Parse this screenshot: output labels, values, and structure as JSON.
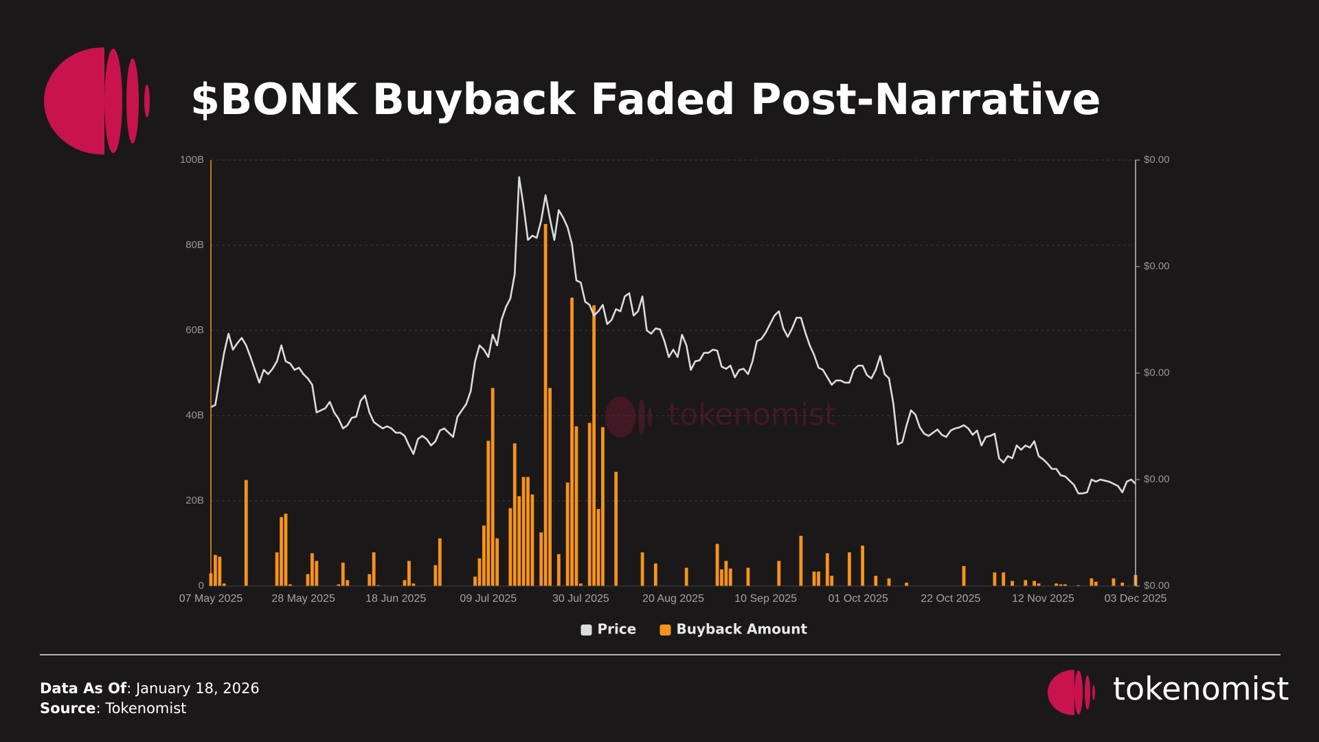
{
  "chart_data": {
    "type": "combo",
    "title": "$BONK Buyback Faded Post-Narrative",
    "categories": [
      "07 May 2025",
      null,
      null,
      null,
      null,
      null,
      null,
      null,
      null,
      null,
      null,
      null,
      null,
      null,
      null,
      null,
      null,
      null,
      null,
      null,
      null,
      "28 May 2025",
      null,
      null,
      null,
      null,
      null,
      null,
      null,
      null,
      null,
      null,
      null,
      null,
      null,
      null,
      null,
      null,
      null,
      null,
      null,
      null,
      "18 Jun 2025",
      null,
      null,
      null,
      null,
      null,
      null,
      null,
      null,
      null,
      null,
      null,
      null,
      null,
      null,
      null,
      null,
      null,
      null,
      null,
      null,
      "09 Jul 2025",
      null,
      null,
      null,
      null,
      null,
      null,
      null,
      null,
      null,
      null,
      null,
      null,
      null,
      null,
      null,
      null,
      null,
      null,
      null,
      null,
      "30 Jul 2025",
      null,
      null,
      null,
      null,
      null,
      null,
      null,
      null,
      null,
      null,
      null,
      null,
      null,
      null,
      null,
      null,
      null,
      null,
      null,
      null,
      "20 Aug 2025",
      null,
      null,
      null,
      null,
      null,
      null,
      null,
      null,
      null,
      null,
      null,
      null,
      null,
      null,
      null,
      null,
      null,
      null,
      null,
      null,
      "10 Sep 2025",
      null,
      null,
      null,
      null,
      null,
      null,
      null,
      null,
      null,
      null,
      null,
      null,
      null,
      null,
      null,
      null,
      null,
      null,
      null,
      null,
      "01 Oct 2025",
      null,
      null,
      null,
      null,
      null,
      null,
      null,
      null,
      null,
      null,
      null,
      null,
      null,
      null,
      null,
      null,
      null,
      null,
      null,
      null,
      "22 Oct 2025",
      null,
      null,
      null,
      null,
      null,
      null,
      null,
      null,
      null,
      null,
      null,
      null,
      null,
      null,
      null,
      null,
      null,
      null,
      null,
      null,
      "12 Nov 2025",
      null,
      null,
      null,
      null,
      null,
      null,
      null,
      null,
      null,
      null,
      null,
      null,
      null,
      null,
      null,
      null,
      null,
      null,
      null,
      null,
      "03 Dec 2025"
    ],
    "series": [
      {
        "name": "Price",
        "type": "line",
        "axis": "y2",
        "color": "#dcdcdc",
        "values": [
          1.68e-05,
          1.7e-05,
          1.95e-05,
          2.19e-05,
          2.37e-05,
          2.22e-05,
          2.28e-05,
          2.33e-05,
          2.26e-05,
          2.15e-05,
          2.03e-05,
          1.91e-05,
          2.03e-05,
          1.99e-05,
          2.04e-05,
          2.11e-05,
          2.26e-05,
          2.11e-05,
          2.09e-05,
          2.03e-05,
          2.05e-05,
          1.99e-05,
          1.95e-05,
          1.89e-05,
          1.63e-05,
          1.65e-05,
          1.67e-05,
          1.73e-05,
          1.63e-05,
          1.57e-05,
          1.48e-05,
          1.51e-05,
          1.58e-05,
          1.59e-05,
          1.74e-05,
          1.79e-05,
          1.63e-05,
          1.54e-05,
          1.51e-05,
          1.48e-05,
          1.5e-05,
          1.48e-05,
          1.44e-05,
          1.44e-05,
          1.41e-05,
          1.32e-05,
          1.24e-05,
          1.38e-05,
          1.41e-05,
          1.38e-05,
          1.32e-05,
          1.36e-05,
          1.46e-05,
          1.48e-05,
          1.44e-05,
          1.4e-05,
          1.59e-05,
          1.65e-05,
          1.71e-05,
          1.83e-05,
          2.11e-05,
          2.26e-05,
          2.22e-05,
          2.15e-05,
          2.36e-05,
          2.26e-05,
          2.5e-05,
          2.62e-05,
          2.7e-05,
          2.93e-05,
          3.84e-05,
          3.57e-05,
          3.25e-05,
          3.29e-05,
          3.27e-05,
          3.43e-05,
          3.67e-05,
          3.45e-05,
          3.25e-05,
          3.53e-05,
          3.46e-05,
          3.37e-05,
          3.21e-05,
          2.87e-05,
          2.85e-05,
          2.67e-05,
          2.64e-05,
          2.54e-05,
          2.58e-05,
          2.64e-05,
          2.46e-05,
          2.5e-05,
          2.6e-05,
          2.58e-05,
          2.72e-05,
          2.75e-05,
          2.54e-05,
          2.58e-05,
          2.72e-05,
          2.4e-05,
          2.37e-05,
          2.42e-05,
          2.41e-05,
          2.3e-05,
          2.15e-05,
          2.22e-05,
          2.15e-05,
          2.36e-05,
          2.26e-05,
          2.03e-05,
          2.11e-05,
          2.12e-05,
          2.19e-05,
          2.19e-05,
          2.22e-05,
          2.21e-05,
          2.06e-05,
          2.04e-05,
          2.07e-05,
          1.96e-05,
          2.03e-05,
          2.04e-05,
          1.99e-05,
          2.11e-05,
          2.3e-05,
          2.32e-05,
          2.38e-05,
          2.46e-05,
          2.54e-05,
          2.58e-05,
          2.42e-05,
          2.34e-05,
          2.42e-05,
          2.52e-05,
          2.52e-05,
          2.38e-05,
          2.26e-05,
          2.17e-05,
          2.05e-05,
          2.03e-05,
          1.96e-05,
          1.89e-05,
          1.93e-05,
          1.93e-05,
          1.91e-05,
          1.91e-05,
          2.03e-05,
          2.07e-05,
          2.07e-05,
          1.98e-05,
          1.95e-05,
          2.03e-05,
          2.16e-05,
          1.99e-05,
          1.95e-05,
          1.71e-05,
          1.33e-05,
          1.35e-05,
          1.51e-05,
          1.65e-05,
          1.61e-05,
          1.49e-05,
          1.43e-05,
          1.41e-05,
          1.44e-05,
          1.47e-05,
          1.42e-05,
          1.4e-05,
          1.46e-05,
          1.48e-05,
          1.49e-05,
          1.51e-05,
          1.48e-05,
          1.42e-05,
          1.46e-05,
          1.32e-05,
          1.4e-05,
          1.41e-05,
          1.43e-05,
          1.2e-05,
          1.16e-05,
          1.22e-05,
          1.2e-05,
          1.32e-05,
          1.28e-05,
          1.32e-05,
          1.3e-05,
          1.36e-05,
          1.22e-05,
          1.19e-05,
          1.15e-05,
          1.1e-05,
          1.1e-05,
          1.04e-05,
          1.03e-05,
          9.9e-06,
          9.5e-06,
          8.7e-06,
          8.7e-06,
          8.8e-06,
          1e-05,
          9.8e-06,
          1e-05,
          9.9e-06,
          9.8e-06,
          9.6e-06,
          9.4e-06,
          8.8e-06,
          9.8e-06,
          1e-05,
          9.6e-06
        ]
      },
      {
        "name": "Buyback Amount",
        "type": "bar",
        "axis": "y",
        "color": "#f7931a",
        "values": [
          3.0,
          7.3,
          6.9,
          0.6,
          0,
          0,
          0,
          0,
          24.9,
          0,
          0,
          0,
          0,
          0,
          0,
          7.9,
          16.2,
          17.0,
          0.4,
          0,
          0,
          0,
          2.8,
          7.7,
          5.9,
          0,
          0,
          0,
          0,
          0.4,
          5.5,
          1.4,
          0,
          0,
          0,
          0,
          2.8,
          7.9,
          0.2,
          0,
          0,
          0,
          0,
          0,
          1.4,
          5.9,
          0.6,
          0,
          0,
          0,
          0,
          4.9,
          11.2,
          0,
          0,
          0,
          0,
          0,
          0,
          0,
          2.2,
          6.5,
          14.2,
          34.1,
          46.5,
          11.2,
          0,
          0,
          18.3,
          33.5,
          21.1,
          25.6,
          25.6,
          21.5,
          0,
          12.6,
          85.0,
          46.5,
          0,
          7.5,
          0,
          24.3,
          67.7,
          37.5,
          0.6,
          0,
          38.3,
          65.9,
          18.1,
          37.3,
          0,
          0,
          26.8,
          0,
          0,
          0,
          0,
          0,
          7.9,
          0,
          0,
          5.3,
          0,
          0,
          0,
          0,
          0,
          0,
          4.3,
          0,
          0,
          0,
          0,
          0,
          0,
          9.9,
          3.9,
          5.9,
          4.1,
          0,
          0,
          0,
          4.3,
          0,
          0,
          0,
          0,
          0,
          0,
          5.9,
          0,
          0,
          0,
          0,
          11.8,
          0,
          0,
          3.4,
          3.4,
          0,
          7.7,
          2.4,
          0,
          0,
          0,
          7.9,
          0,
          0,
          9.5,
          0,
          0,
          2.4,
          0,
          0,
          1.8,
          0,
          0,
          0,
          0.8,
          0,
          0,
          0,
          0,
          0,
          0,
          0,
          0,
          0,
          0,
          0,
          0,
          4.7,
          0,
          0,
          0,
          0,
          0,
          0,
          3.2,
          0,
          3.2,
          0,
          1.2,
          0,
          0,
          1.4,
          0,
          1.2,
          0.6,
          0,
          0,
          0,
          0.6,
          0.4,
          0.4,
          0,
          0,
          0.2,
          0,
          0,
          1.8,
          1.0,
          0,
          0,
          0,
          1.8,
          0,
          0.8,
          0,
          0,
          2.6
        ]
      }
    ],
    "ylim": [
      0,
      100
    ],
    "yticks": [
      0,
      {
        "value": 20,
        "label": "20B"
      },
      {
        "value": 40,
        "label": "40B"
      },
      {
        "value": 60,
        "label": "60B"
      },
      {
        "value": 80,
        "label": "80B"
      },
      {
        "value": 100,
        "label": "100B"
      }
    ],
    "y2lim": [
      0,
      4e-05
    ],
    "y2ticks": [
      {
        "value": 0,
        "label": "$0.00"
      },
      {
        "value": 1e-05,
        "label": "$0.00"
      },
      {
        "value": 2e-05,
        "label": "$0.00"
      },
      {
        "value": 3e-05,
        "label": "$0.00"
      },
      {
        "value": 4e-05,
        "label": "$0.00"
      }
    ],
    "grid": true,
    "legend": "bottom",
    "watermark": "tokenomist"
  },
  "footer": {
    "data_as_of_label": "Data As Of",
    "data_as_of": ": January 18, 2026",
    "source_label": "Source",
    "source": ": Tokenomist",
    "brand": "tokenomist"
  }
}
